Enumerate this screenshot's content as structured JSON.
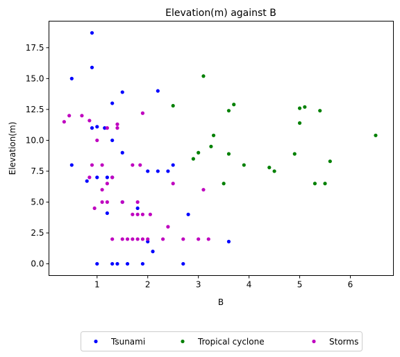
{
  "chart_data": {
    "type": "scatter",
    "title": "Elevation(m) against B",
    "xlabel": "B",
    "ylabel": "Elevation(m)",
    "xlim": [
      0.05,
      6.85
    ],
    "ylim": [
      -0.95,
      19.65
    ],
    "xticks": [
      1,
      2,
      3,
      4,
      5,
      6
    ],
    "yticks": [
      0.0,
      2.5,
      5.0,
      7.5,
      10.0,
      12.5,
      15.0,
      17.5
    ],
    "grid": false,
    "legend_position": "bottom",
    "series": [
      {
        "name": "Tsunami",
        "color": "#0000ff",
        "points": [
          [
            0.5,
            15.0
          ],
          [
            0.9,
            18.7
          ],
          [
            0.9,
            15.9
          ],
          [
            0.5,
            8.0
          ],
          [
            0.8,
            6.7
          ],
          [
            0.9,
            11.0
          ],
          [
            1.0,
            11.1
          ],
          [
            1.0,
            7.0
          ],
          [
            1.0,
            0.0
          ],
          [
            1.15,
            11.0
          ],
          [
            1.2,
            4.1
          ],
          [
            1.2,
            7.0
          ],
          [
            1.3,
            13.0
          ],
          [
            1.3,
            10.0
          ],
          [
            1.3,
            7.0
          ],
          [
            1.3,
            0.0
          ],
          [
            1.4,
            0.0
          ],
          [
            1.5,
            13.9
          ],
          [
            1.5,
            9.0
          ],
          [
            1.5,
            5.0
          ],
          [
            1.6,
            0.0
          ],
          [
            1.8,
            4.5
          ],
          [
            1.9,
            0.0
          ],
          [
            2.0,
            7.5
          ],
          [
            2.0,
            1.8
          ],
          [
            2.1,
            1.0
          ],
          [
            2.2,
            14.0
          ],
          [
            2.2,
            7.5
          ],
          [
            2.4,
            7.5
          ],
          [
            2.5,
            8.0
          ],
          [
            2.7,
            0.0
          ],
          [
            2.8,
            4.0
          ],
          [
            3.6,
            1.8
          ]
        ]
      },
      {
        "name": "Tropical cyclone",
        "color": "#008000",
        "points": [
          [
            2.5,
            12.8
          ],
          [
            2.9,
            8.5
          ],
          [
            3.0,
            9.0
          ],
          [
            3.1,
            15.2
          ],
          [
            3.25,
            9.5
          ],
          [
            3.3,
            10.4
          ],
          [
            3.5,
            6.5
          ],
          [
            3.6,
            12.4
          ],
          [
            3.6,
            8.9
          ],
          [
            3.7,
            12.9
          ],
          [
            3.9,
            8.0
          ],
          [
            4.4,
            7.8
          ],
          [
            4.5,
            7.5
          ],
          [
            4.9,
            8.9
          ],
          [
            5.0,
            12.6
          ],
          [
            5.0,
            11.4
          ],
          [
            5.1,
            12.7
          ],
          [
            5.3,
            6.5
          ],
          [
            5.4,
            12.4
          ],
          [
            5.5,
            6.5
          ],
          [
            5.6,
            8.3
          ],
          [
            6.5,
            10.4
          ]
        ]
      },
      {
        "name": "Storms",
        "color": "#bf00bf",
        "points": [
          [
            0.35,
            11.5
          ],
          [
            0.45,
            12.0
          ],
          [
            0.7,
            12.0
          ],
          [
            0.85,
            11.6
          ],
          [
            0.85,
            7.0
          ],
          [
            0.9,
            8.0
          ],
          [
            0.95,
            4.5
          ],
          [
            1.0,
            10.0
          ],
          [
            1.1,
            8.0
          ],
          [
            1.1,
            6.0
          ],
          [
            1.1,
            5.0
          ],
          [
            1.2,
            11.0
          ],
          [
            1.2,
            6.5
          ],
          [
            1.2,
            5.0
          ],
          [
            1.3,
            7.0
          ],
          [
            1.3,
            2.0
          ],
          [
            1.4,
            11.3
          ],
          [
            1.4,
            11.0
          ],
          [
            1.5,
            5.0
          ],
          [
            1.5,
            2.0
          ],
          [
            1.6,
            2.0
          ],
          [
            1.7,
            8.0
          ],
          [
            1.7,
            4.0
          ],
          [
            1.7,
            2.0
          ],
          [
            1.8,
            5.0
          ],
          [
            1.8,
            4.0
          ],
          [
            1.8,
            2.0
          ],
          [
            1.85,
            8.0
          ],
          [
            1.9,
            12.2
          ],
          [
            1.9,
            4.0
          ],
          [
            1.9,
            2.0
          ],
          [
            2.0,
            2.0
          ],
          [
            2.05,
            4.0
          ],
          [
            2.3,
            2.0
          ],
          [
            2.4,
            3.0
          ],
          [
            2.5,
            6.5
          ],
          [
            2.7,
            2.0
          ],
          [
            3.0,
            2.0
          ],
          [
            3.1,
            6.0
          ],
          [
            3.2,
            2.0
          ]
        ]
      }
    ]
  }
}
